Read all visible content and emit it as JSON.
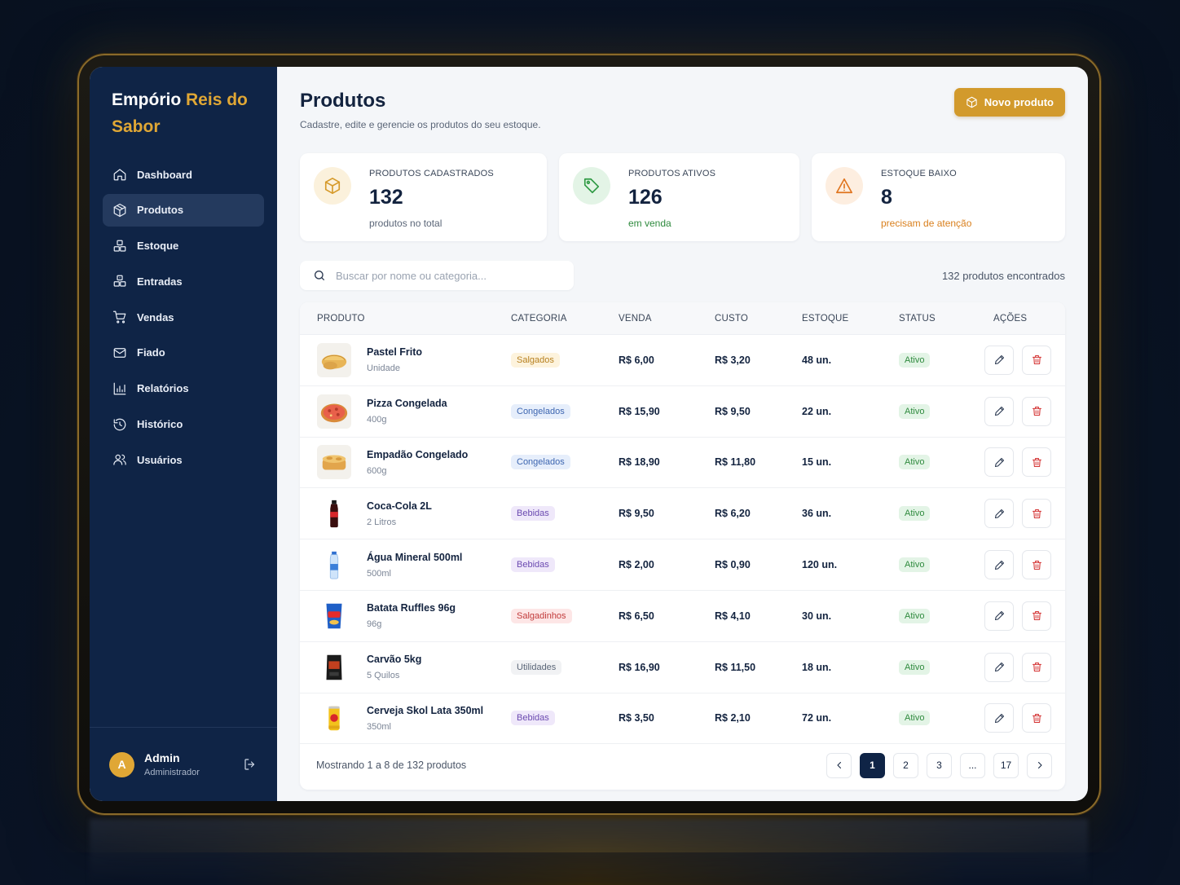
{
  "brand": {
    "name_part1": "Empório ",
    "name_part2": "Reis do Sabor",
    "accent_color": "#e0a735"
  },
  "sidebar": {
    "items": [
      {
        "label": "Dashboard",
        "icon": "home-icon",
        "active": false
      },
      {
        "label": "Produtos",
        "icon": "box-icon",
        "active": true
      },
      {
        "label": "Estoque",
        "icon": "boxes-icon",
        "active": false
      },
      {
        "label": "Entradas",
        "icon": "boxes-in-icon",
        "active": false
      },
      {
        "label": "Vendas",
        "icon": "cart-icon",
        "active": false
      },
      {
        "label": "Fiado",
        "icon": "mail-icon",
        "active": false
      },
      {
        "label": "Relatórios",
        "icon": "bar-chart-icon",
        "active": false
      },
      {
        "label": "Histórico",
        "icon": "history-icon",
        "active": false
      },
      {
        "label": "Usuários",
        "icon": "users-icon",
        "active": false
      }
    ],
    "user": {
      "initial": "A",
      "name": "Admin",
      "role": "Administrador"
    }
  },
  "header": {
    "title": "Produtos",
    "subtitle": "Cadastre, edite e gerencie os produtos do seu estoque.",
    "new_button_label": "Novo produto"
  },
  "stats": [
    {
      "label": "PRODUTOS CADASTRADOS",
      "value": "132",
      "note": "produtos no total"
    },
    {
      "label": "PRODUTOS ATIVOS",
      "value": "126",
      "note": "em venda"
    },
    {
      "label": "ESTOQUE BAIXO",
      "value": "8",
      "note": "precisam de atenção"
    }
  ],
  "search": {
    "placeholder": "Buscar por nome ou categoria...",
    "value": ""
  },
  "results_count": "132 produtos encontrados",
  "table": {
    "headers": {
      "produto": "PRODUTO",
      "categoria": "CATEGORIA",
      "venda": "VENDA",
      "custo": "CUSTO",
      "estoque": "ESTOQUE",
      "status": "STATUS",
      "acoes": "AÇÕES"
    },
    "rows": [
      {
        "name": "Pastel Frito",
        "unit": "Unidade",
        "category": "Salgados",
        "price": "R$ 6,00",
        "cost": "R$ 3,20",
        "stock": "48 un.",
        "status": "Ativo"
      },
      {
        "name": "Pizza Congelada",
        "unit": "400g",
        "category": "Congelados",
        "price": "R$ 15,90",
        "cost": "R$ 9,50",
        "stock": "22 un.",
        "status": "Ativo"
      },
      {
        "name": "Empadão Congelado",
        "unit": "600g",
        "category": "Congelados",
        "price": "R$ 18,90",
        "cost": "R$ 11,80",
        "stock": "15 un.",
        "status": "Ativo"
      },
      {
        "name": "Coca-Cola 2L",
        "unit": "2 Litros",
        "category": "Bebidas",
        "price": "R$ 9,50",
        "cost": "R$ 6,20",
        "stock": "36 un.",
        "status": "Ativo"
      },
      {
        "name": "Água Mineral 500ml",
        "unit": "500ml",
        "category": "Bebidas",
        "price": "R$ 2,00",
        "cost": "R$ 0,90",
        "stock": "120 un.",
        "status": "Ativo"
      },
      {
        "name": "Batata Ruffles 96g",
        "unit": "96g",
        "category": "Salgadinhos",
        "price": "R$ 6,50",
        "cost": "R$ 4,10",
        "stock": "30 un.",
        "status": "Ativo"
      },
      {
        "name": "Carvão 5kg",
        "unit": "5 Quilos",
        "category": "Utilidades",
        "price": "R$ 16,90",
        "cost": "R$ 11,50",
        "stock": "18 un.",
        "status": "Ativo"
      },
      {
        "name": "Cerveja Skol Lata 350ml",
        "unit": "350ml",
        "category": "Bebidas",
        "price": "R$ 3,50",
        "cost": "R$ 2,10",
        "stock": "72 un.",
        "status": "Ativo"
      }
    ]
  },
  "footer": {
    "showing": "Mostrando 1 a 8 de 132 produtos",
    "pages": [
      "1",
      "2",
      "3",
      "...",
      "17"
    ],
    "current_page": "1"
  }
}
